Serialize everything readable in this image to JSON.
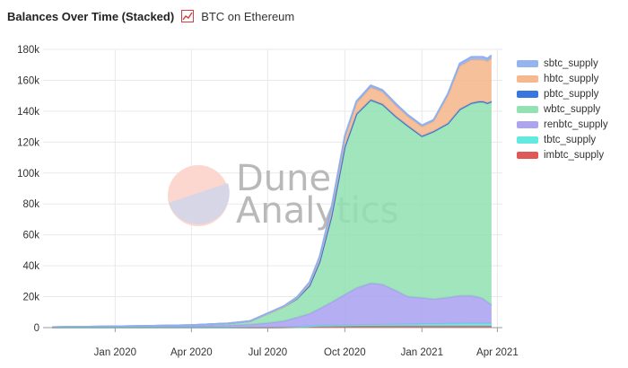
{
  "header": {
    "title": "Balances Over Time (Stacked)",
    "subtitle": "BTC on Ethereum",
    "chart_icon": "line-chart-icon"
  },
  "watermark": {
    "line1": "Dune",
    "line2": "Analytics"
  },
  "colors": {
    "sbtc_supply": "#8fb0f0",
    "hbtc_supply": "#f5b58a",
    "pbtc_supply": "#2f6fe0",
    "wbtc_supply": "#8fe0b0",
    "renbtc_supply": "#a8a0f0",
    "tbtc_supply": "#5ce8e0",
    "imbtc_supply": "#e05050"
  },
  "chart_data": {
    "type": "area",
    "stacked": true,
    "title": "Balances Over Time (Stacked)",
    "subtitle": "BTC on Ethereum",
    "x_tick_labels": [
      "Jan 2020",
      "Apr 2020",
      "Jul 2020",
      "Oct 2020",
      "Jan 2021",
      "Apr 2021"
    ],
    "x_tick_dates": [
      "2020-01-01",
      "2020-04-01",
      "2020-07-01",
      "2020-10-01",
      "2021-01-01",
      "2021-04-01"
    ],
    "xlim": [
      "2019-10-07",
      "2021-04-07"
    ],
    "ylim": [
      0,
      180000
    ],
    "y_ticks": [
      0,
      20000,
      40000,
      60000,
      80000,
      100000,
      120000,
      140000,
      160000,
      180000
    ],
    "y_tick_labels": [
      "0",
      "20k",
      "40k",
      "60k",
      "80k",
      "100k",
      "120k",
      "140k",
      "160k",
      "180k"
    ],
    "grid": {
      "x": true,
      "y": true
    },
    "legend_position": "right",
    "x": [
      "2019-10-18",
      "2019-12-01",
      "2020-02-01",
      "2020-04-01",
      "2020-05-15",
      "2020-06-10",
      "2020-07-01",
      "2020-07-20",
      "2020-08-05",
      "2020-08-20",
      "2020-09-01",
      "2020-09-15",
      "2020-10-01",
      "2020-10-15",
      "2020-11-01",
      "2020-11-15",
      "2020-12-01",
      "2020-12-15",
      "2021-01-01",
      "2021-01-15",
      "2021-02-01",
      "2021-02-15",
      "2021-03-01",
      "2021-03-10",
      "2021-03-15",
      "2021-03-20",
      "2021-03-25"
    ],
    "series": [
      {
        "name": "imbtc_supply",
        "values": [
          0,
          0,
          0,
          0,
          0,
          0,
          0,
          100,
          300,
          600,
          800,
          800,
          800,
          900,
          900,
          900,
          900,
          900,
          900,
          900,
          900,
          900,
          900,
          900,
          900,
          900,
          900
        ]
      },
      {
        "name": "tbtc_supply",
        "values": [
          0,
          0,
          0,
          0,
          0,
          100,
          150,
          200,
          300,
          400,
          500,
          600,
          700,
          800,
          900,
          1000,
          1100,
          1200,
          1400,
          1500,
          1600,
          1700,
          1800,
          1800,
          1800,
          1800,
          1800
        ]
      },
      {
        "name": "renbtc_supply",
        "values": [
          200,
          400,
          600,
          1000,
          1500,
          2000,
          2800,
          4000,
          6000,
          8000,
          11000,
          15000,
          20000,
          24000,
          27000,
          26000,
          22000,
          18000,
          17000,
          16000,
          17000,
          18000,
          18000,
          17000,
          16000,
          14000,
          12000
        ]
      },
      {
        "name": "wbtc_supply",
        "values": [
          100,
          200,
          400,
          600,
          1200,
          2000,
          6000,
          9000,
          12000,
          18000,
          30000,
          55000,
          95000,
          112000,
          118000,
          116000,
          112000,
          110000,
          104000,
          108000,
          112000,
          120000,
          124000,
          126000,
          127000,
          128000,
          131000
        ]
      },
      {
        "name": "pbtc_supply",
        "values": [
          0,
          0,
          0,
          0,
          0,
          0,
          100,
          100,
          200,
          300,
          400,
          500,
          600,
          600,
          600,
          600,
          600,
          600,
          600,
          600,
          600,
          600,
          600,
          600,
          600,
          600,
          600
        ]
      },
      {
        "name": "hbtc_supply",
        "values": [
          0,
          0,
          0,
          0,
          0,
          0,
          0,
          0,
          500,
          1500,
          2500,
          4500,
          6000,
          7000,
          8000,
          8000,
          7000,
          6000,
          6000,
          6500,
          18000,
          28000,
          28000,
          27000,
          27000,
          27000,
          28000
        ]
      },
      {
        "name": "sbtc_supply",
        "values": [
          0,
          0,
          0,
          0,
          100,
          200,
          300,
          400,
          500,
          600,
          800,
          1000,
          1000,
          1200,
          1300,
          1200,
          1200,
          1000,
          1000,
          1000,
          1200,
          1600,
          1800,
          1800,
          1800,
          1800,
          1800
        ]
      }
    ]
  },
  "legend": {
    "items": [
      "sbtc_supply",
      "hbtc_supply",
      "pbtc_supply",
      "wbtc_supply",
      "renbtc_supply",
      "tbtc_supply",
      "imbtc_supply"
    ]
  }
}
